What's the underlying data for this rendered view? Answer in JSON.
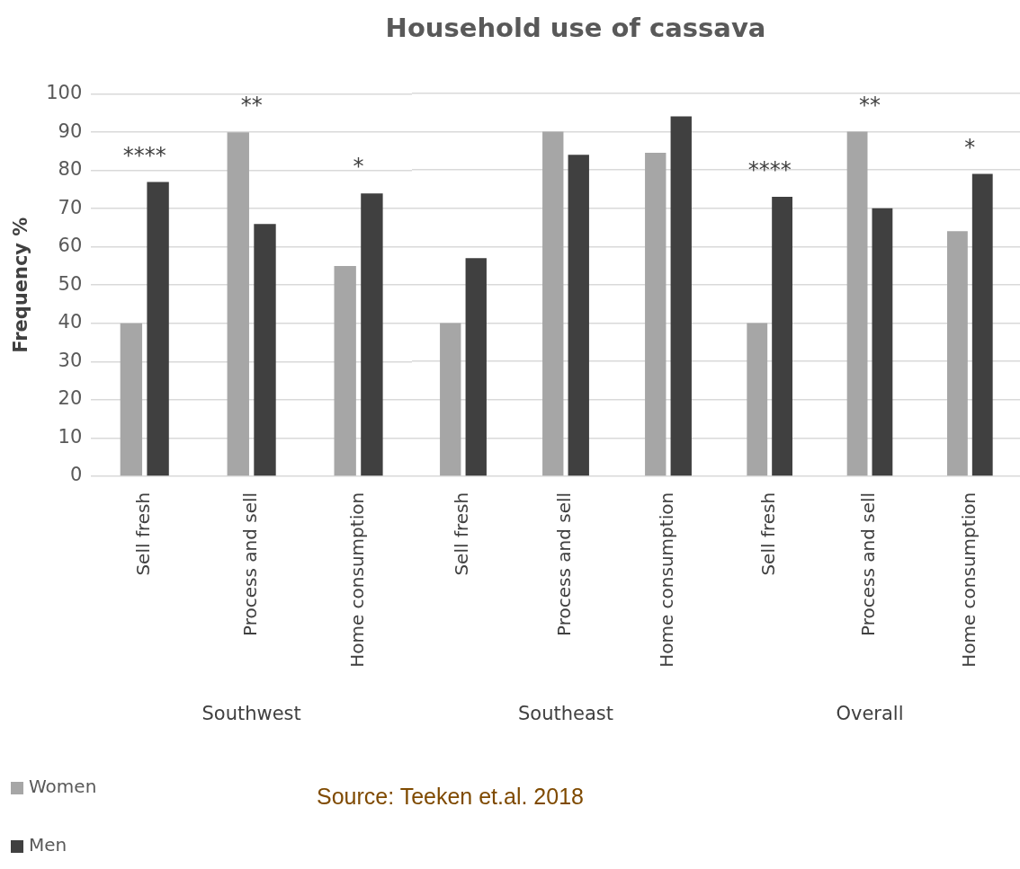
{
  "chart_data": [
    {
      "type": "bar",
      "ylabel": "Frequency %",
      "xlabel": "Southwest",
      "categories": [
        "Sell fresh",
        "Process and sell",
        "Home consumption"
      ],
      "series": [
        {
          "name": "Women",
          "color": "#a6a6a6",
          "values": [
            40,
            90,
            55
          ]
        },
        {
          "name": "Men",
          "color": "#404040",
          "values": [
            77,
            66,
            74
          ]
        }
      ],
      "ylim": [
        0,
        100
      ],
      "yticks": [
        0,
        10,
        20,
        30,
        40,
        50,
        60,
        70,
        80,
        90,
        100
      ],
      "grid": "y",
      "legend": "bottom left",
      "annotations": [
        "****",
        "**",
        "*"
      ]
    },
    {
      "type": "bar",
      "title": "Household use of cassava",
      "xlabel": "Southeast",
      "annotations": [
        "Source: Teeken et.al. 2018"
      ],
      "categories": [
        "Sell fresh",
        "Process and sell",
        "Home consumption"
      ],
      "series": [
        {
          "color": "#a6a6a6",
          "values": [
            40,
            90,
            84.5
          ]
        },
        {
          "color": "#404040",
          "values": [
            57,
            84,
            94
          ]
        }
      ],
      "ylim": [
        0,
        100
      ],
      "yticks": [
        0,
        10,
        20,
        30,
        40,
        50,
        60,
        70,
        80,
        90,
        100
      ],
      "grid": "y",
      "tick_labels": "x"
    },
    {
      "type": "bar",
      "xlabel": "Overall",
      "categories": [
        "Sell fresh",
        "Process and sell",
        "Home consumption"
      ],
      "series": [
        {
          "color": "#a6a6a6",
          "values": [
            40,
            90,
            64
          ]
        },
        {
          "color": "#404040",
          "values": [
            73,
            70,
            79
          ]
        }
      ],
      "ylim": [
        0,
        100
      ],
      "yticks": [
        0,
        10,
        20,
        30,
        40,
        50,
        60,
        70,
        80,
        90,
        100
      ],
      "grid": "y",
      "tick_labels": "x",
      "annotations": [
        "****",
        "**",
        "*"
      ]
    }
  ]
}
